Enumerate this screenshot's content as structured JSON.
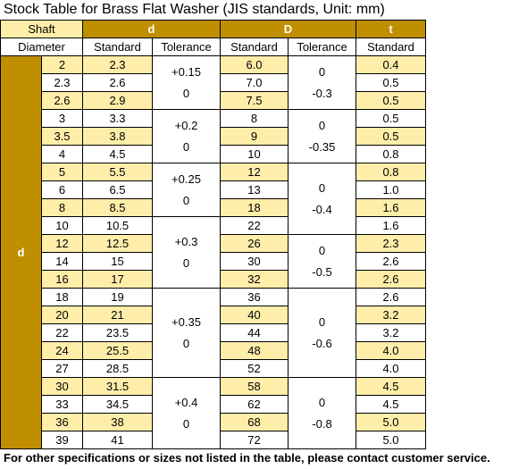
{
  "title": "Stock Table for Brass Flat Washer  (JIS standards, Unit: mm)",
  "header": {
    "shaft": "Shaft",
    "diameter": "Diameter",
    "d": "d",
    "D": "D",
    "t": "t",
    "standard": "Standard",
    "tolerance": "Tolerance",
    "side": "d"
  },
  "rows": [
    {
      "shaft": "2",
      "d": "2.3",
      "D": "6.0",
      "t": "0.4",
      "highlight": true,
      "d_tol": [
        "+0.15",
        "0"
      ],
      "D_tol": [
        "0",
        "-0.3"
      ]
    },
    {
      "shaft": "2.3",
      "d": "2.6",
      "D": "7.0",
      "t": "0.5",
      "highlight": false
    },
    {
      "shaft": "2.6",
      "d": "2.9",
      "D": "7.5",
      "t": "0.5",
      "highlight": true
    },
    {
      "shaft": "3",
      "d": "3.3",
      "D": "8",
      "t": "0.5",
      "highlight": false,
      "d_tol": [
        "+0.2",
        "0"
      ],
      "D_tol": [
        "0",
        "-0.35"
      ]
    },
    {
      "shaft": "3.5",
      "d": "3.8",
      "D": "9",
      "t": "0.5",
      "highlight": true
    },
    {
      "shaft": "4",
      "d": "4.5",
      "D": "10",
      "t": "0.8",
      "highlight": false
    },
    {
      "shaft": "5",
      "d": "5.5",
      "D": "12",
      "t": "0.8",
      "highlight": true,
      "d_tol": [
        "+0.25",
        "0"
      ],
      "D_tol": [
        "0",
        "-0.4"
      ]
    },
    {
      "shaft": "6",
      "d": "6.5",
      "D": "13",
      "t": "1.0",
      "highlight": false
    },
    {
      "shaft": "8",
      "d": "8.5",
      "D": "18",
      "t": "1.6",
      "highlight": true
    },
    {
      "shaft": "10",
      "d": "10.5",
      "D": "22",
      "t": "1.6",
      "highlight": false,
      "d_tol": [
        "+0.3",
        "0"
      ]
    },
    {
      "shaft": "12",
      "d": "12.5",
      "D": "26",
      "t": "2.3",
      "highlight": true,
      "D_tol": [
        "0",
        "-0.5"
      ]
    },
    {
      "shaft": "14",
      "d": "15",
      "D": "30",
      "t": "2.6",
      "highlight": false
    },
    {
      "shaft": "16",
      "d": "17",
      "D": "32",
      "t": "2.6",
      "highlight": true
    },
    {
      "shaft": "18",
      "d": "19",
      "D": "36",
      "t": "2.6",
      "highlight": false,
      "d_tol": [
        "+0.35",
        "0"
      ],
      "D_tol": [
        "0",
        "-0.6"
      ]
    },
    {
      "shaft": "20",
      "d": "21",
      "D": "40",
      "t": "3.2",
      "highlight": true
    },
    {
      "shaft": "22",
      "d": "23.5",
      "D": "44",
      "t": "3.2",
      "highlight": false
    },
    {
      "shaft": "24",
      "d": "25.5",
      "D": "48",
      "t": "4.0",
      "highlight": true
    },
    {
      "shaft": "27",
      "d": "28.5",
      "D": "52",
      "t": "4.0",
      "highlight": false
    },
    {
      "shaft": "30",
      "d": "31.5",
      "D": "58",
      "t": "4.5",
      "highlight": true,
      "d_tol": [
        "+0.4",
        "0"
      ],
      "D_tol": [
        "0",
        "-0.8"
      ]
    },
    {
      "shaft": "33",
      "d": "34.5",
      "D": "62",
      "t": "4.5",
      "highlight": false
    },
    {
      "shaft": "36",
      "d": "38",
      "D": "68",
      "t": "5.0",
      "highlight": true
    },
    {
      "shaft": "39",
      "d": "41",
      "D": "72",
      "t": "5.0",
      "highlight": false
    }
  ],
  "footer": "For other specifications or sizes not listed in the table, please contact customer service."
}
